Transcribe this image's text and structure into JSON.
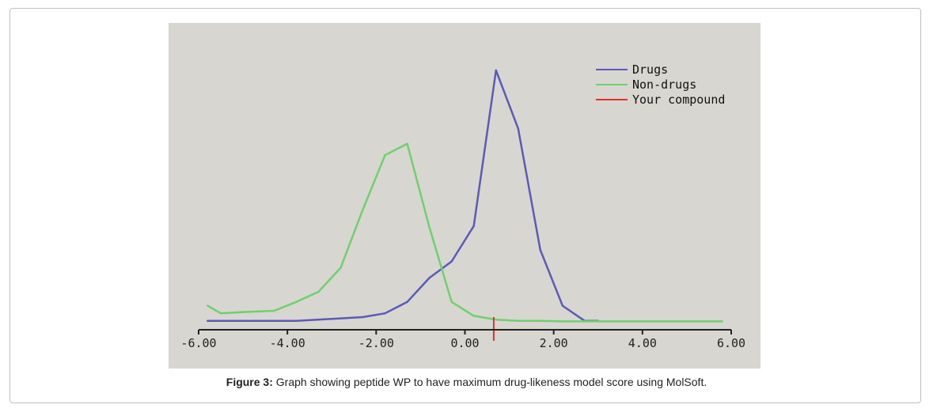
{
  "figure": {
    "caption_label": "Figure 3:",
    "caption_text": "Graph showing peptide WP to have maximum drug-likeness model score using MolSoft."
  },
  "chart_data": {
    "type": "line",
    "title": "",
    "xlabel": "",
    "ylabel": "",
    "xlim": [
      -6.0,
      6.0
    ],
    "xticks": [
      -6,
      -4,
      -2,
      0,
      2,
      4,
      6
    ],
    "tick_labels": [
      "-6.00",
      "-4.00",
      "-2.00",
      "0.00",
      "2.00",
      "4.00",
      "6.00"
    ],
    "ylim": [
      0,
      1
    ],
    "grid": false,
    "legend_position": "top-right",
    "series": [
      {
        "name": "Drugs",
        "color": "#5b5bb6",
        "x": [
          -5.8,
          -4.8,
          -3.8,
          -2.8,
          -2.3,
          -1.8,
          -1.3,
          -0.8,
          -0.3,
          0.2,
          0.7,
          1.2,
          1.7,
          2.2,
          2.7,
          3.0
        ],
        "y": [
          0.01,
          0.01,
          0.01,
          0.02,
          0.025,
          0.04,
          0.085,
          0.18,
          0.245,
          0.385,
          1.0,
          0.77,
          0.29,
          0.07,
          0.01,
          0.01
        ]
      },
      {
        "name": "Non-drugs",
        "color": "#6fd06f",
        "x": [
          -5.8,
          -5.5,
          -5.0,
          -4.3,
          -3.8,
          -3.3,
          -2.8,
          -2.3,
          -1.8,
          -1.3,
          -0.8,
          -0.3,
          0.2,
          0.7,
          1.2,
          1.7,
          2.2,
          2.7,
          3.2,
          5.8
        ],
        "y": [
          0.07,
          0.04,
          0.045,
          0.05,
          0.085,
          0.125,
          0.22,
          0.45,
          0.665,
          0.71,
          0.38,
          0.085,
          0.03,
          0.015,
          0.01,
          0.01,
          0.008,
          0.008,
          0.008,
          0.008
        ]
      },
      {
        "name": "Your compound",
        "color": "#e03030",
        "marker_x": 0.65
      }
    ]
  }
}
